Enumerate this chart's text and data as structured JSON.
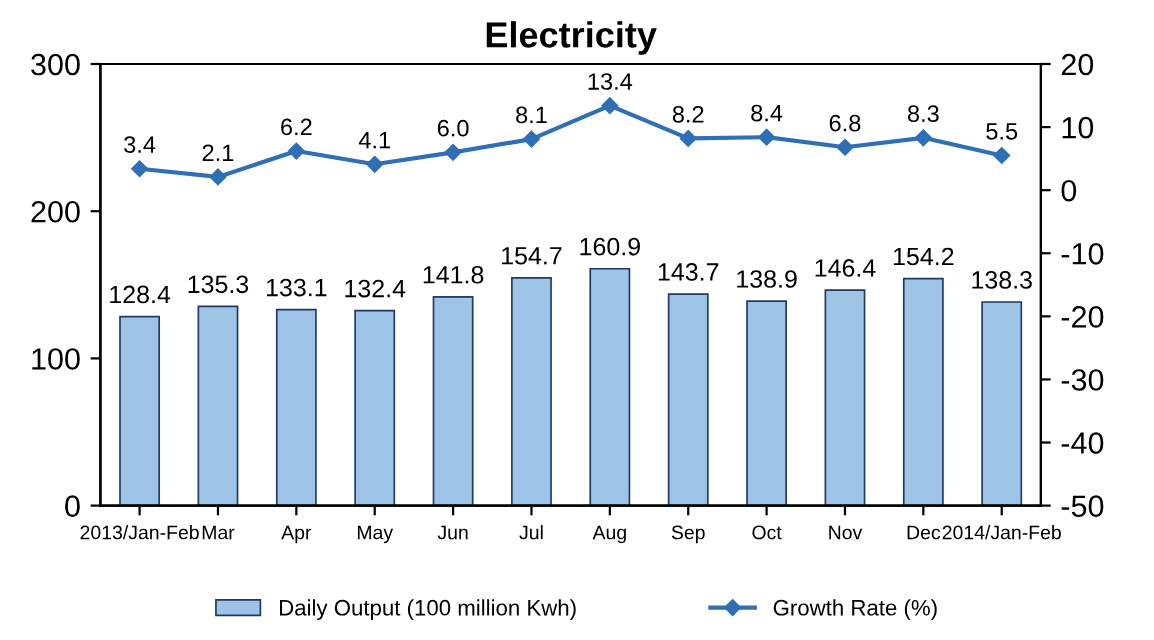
{
  "chart_data": {
    "type": "bar",
    "title": "Electricity",
    "categories": [
      "2013/Jan-Feb",
      "Mar",
      "Apr",
      "May",
      "Jun",
      "Jul",
      "Aug",
      "Sep",
      "Oct",
      "Nov",
      "Dec",
      "2014/Jan-Feb"
    ],
    "series": [
      {
        "name": "Daily Output (100 million Kwh)",
        "color": "#9dc3e6",
        "values": [
          128.4,
          135.3,
          133.1,
          132.4,
          141.8,
          154.7,
          160.9,
          143.7,
          138.9,
          146.4,
          154.2,
          138.3
        ],
        "value_labels": [
          "128.4",
          "135.3",
          "133.1",
          "132.4",
          "141.8",
          "154.7",
          "160.9",
          "143.7",
          "138.9",
          "146.4",
          "154.2",
          "138.3"
        ]
      },
      {
        "name": "Growth Rate (%)",
        "type": "line",
        "axis": "y2",
        "color": "#2e6fb5",
        "marker": "diamond",
        "values": [
          3.4,
          2.1,
          6.2,
          4.1,
          6.0,
          8.1,
          13.4,
          8.2,
          8.4,
          6.8,
          8.3,
          5.5
        ],
        "value_labels": [
          "3.4",
          "2.1",
          "6.2",
          "4.1",
          "6.0",
          "8.1",
          "13.4",
          "8.2",
          "8.4",
          "6.8",
          "8.3",
          "5.5"
        ]
      }
    ],
    "ylim": [
      0,
      300
    ],
    "yticks": [
      0,
      100,
      200,
      300
    ],
    "y2lim": [
      -50,
      20
    ],
    "y2ticks": [
      -50,
      -40,
      -30,
      -20,
      -10,
      0,
      10,
      20
    ],
    "grid": false,
    "legend": "bottom"
  }
}
